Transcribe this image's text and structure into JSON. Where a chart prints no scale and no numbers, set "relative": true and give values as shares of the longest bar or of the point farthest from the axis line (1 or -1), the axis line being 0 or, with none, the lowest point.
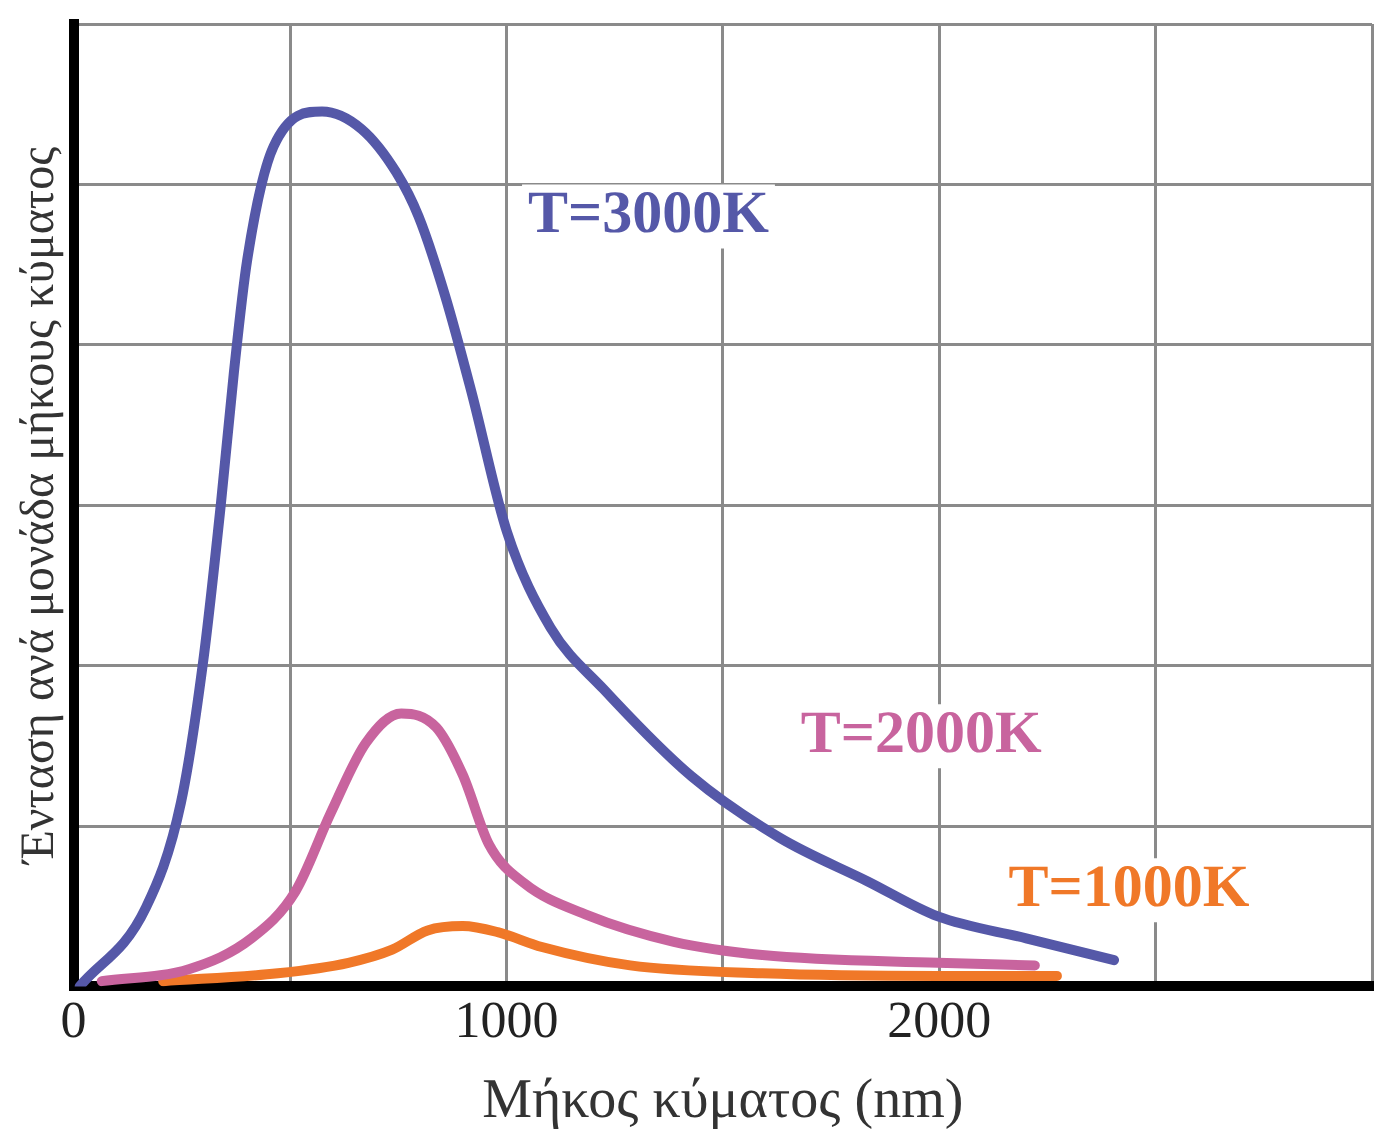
{
  "chart_data": {
    "type": "line",
    "xlabel": "Μήκος κύματος (nm)",
    "ylabel": "Ένταση ανά μονάδα μήκους κύματος",
    "relative": true,
    "grid": true,
    "legend": false,
    "marker": "none",
    "line_style": "solid",
    "xlim": [
      0,
      3000
    ],
    "xticks": [
      0,
      {
        "value": 500,
        "label": null
      },
      1000,
      {
        "value": 1500,
        "label": null
      },
      2000,
      {
        "value": 2500,
        "label": null
      },
      {
        "value": 3000,
        "label": null
      }
    ],
    "series": [
      {
        "name": "T=3000K",
        "color": "#5558a8",
        "x": [
          14,
          167,
          248,
          299,
          340,
          370,
          401,
          462,
          574,
          665,
          746,
          797,
          858,
          919,
          1001,
          1102,
          1224,
          1428,
          1631,
          1835,
          1997,
          2201,
          2404
        ],
        "values": [
          0.0,
          0.09,
          0.21,
          0.37,
          0.55,
          0.7,
          0.83,
          0.96,
          1.0,
          0.98,
          0.93,
          0.88,
          0.79,
          0.68,
          0.52,
          0.41,
          0.34,
          0.24,
          0.17,
          0.12,
          0.08,
          0.055,
          0.03
        ]
      },
      {
        "name": "T=2000K",
        "color": "#c8649e",
        "x": [
          65,
          268,
          411,
          513,
          594,
          675,
          757,
          838,
          899,
          960,
          1041,
          1184,
          1387,
          1591,
          1997,
          2221
        ],
        "values": [
          0.006,
          0.02,
          0.055,
          0.109,
          0.198,
          0.278,
          0.312,
          0.296,
          0.242,
          0.162,
          0.118,
          0.082,
          0.051,
          0.036,
          0.027,
          0.024
        ]
      },
      {
        "name": "T=1000K",
        "color": "#f07828",
        "x": [
          207,
          472,
          635,
          736,
          818,
          899,
          980,
          1082,
          1286,
          1591,
          1997,
          2272
        ],
        "values": [
          0.006,
          0.015,
          0.027,
          0.042,
          0.064,
          0.069,
          0.062,
          0.045,
          0.024,
          0.015,
          0.012,
          0.012
        ]
      }
    ]
  }
}
